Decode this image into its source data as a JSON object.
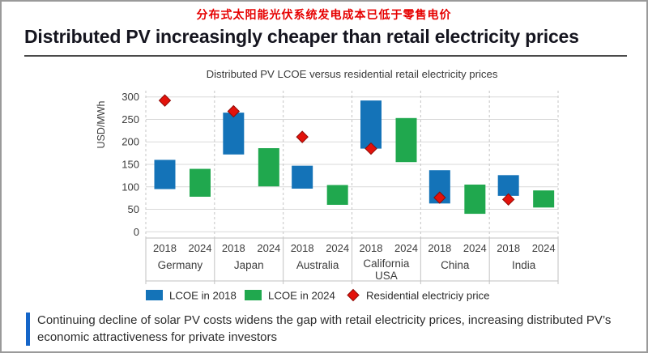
{
  "header": {
    "cn_title": "分布式太阳能光伏系统发电成本已低于零售电价",
    "en_title": "Distributed PV increasingly cheaper than retail electricity prices"
  },
  "chart_data": {
    "type": "bar",
    "subtype": "floating-range-bars-with-diamond-markers",
    "title": "Distributed PV LCOE versus residential retail electricity prices",
    "ylabel": "USD/MWh",
    "ylim": [
      0,
      300
    ],
    "yticks": [
      0,
      50,
      100,
      150,
      200,
      250,
      300
    ],
    "grid": "horizontal",
    "group_separators": "dashed",
    "legend_position": "bottom",
    "categories": [
      "Germany",
      "Japan",
      "Australia",
      "California USA",
      "China",
      "India"
    ],
    "year_labels": [
      "2018",
      "2024"
    ],
    "series": [
      {
        "name": "LCOE in 2018",
        "type": "range-bar",
        "year": "2018",
        "color": "#1473b8",
        "ranges": [
          [
            95,
            160
          ],
          [
            172,
            265
          ],
          [
            96,
            147
          ],
          [
            185,
            292
          ],
          [
            63,
            137
          ],
          [
            80,
            126
          ]
        ]
      },
      {
        "name": "LCOE in 2024",
        "type": "range-bar",
        "year": "2024",
        "color": "#20a84e",
        "ranges": [
          [
            78,
            140
          ],
          [
            101,
            186
          ],
          [
            60,
            104
          ],
          [
            155,
            253
          ],
          [
            40,
            105
          ],
          [
            54,
            92
          ]
        ]
      },
      {
        "name": "Residential electriciy price",
        "type": "scatter",
        "marker": "diamond",
        "color": "#e3120b",
        "values": [
          292,
          268,
          211,
          185,
          76,
          72
        ]
      }
    ]
  },
  "footnote": {
    "text": "Continuing decline of solar PV costs widens the gap with retail electricity prices, increasing distributed PV’s economic attractiveness for private investors"
  },
  "colors": {
    "accent_red": "#e60000",
    "bar_2018": "#1473b8",
    "bar_2024": "#20a84e",
    "marker_red": "#e3120b",
    "note_bar_blue": "#1565c8"
  }
}
